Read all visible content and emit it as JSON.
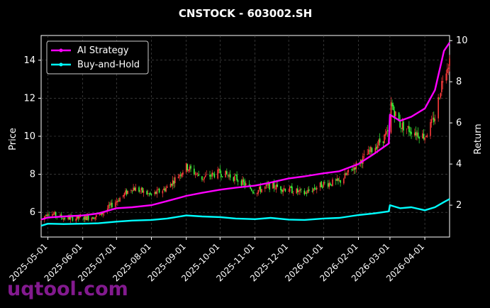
{
  "chart_data": {
    "type": "line",
    "title": "CNSTOCK - 603002.SH",
    "ylabel_left": "Price",
    "ylabel_right": "Return",
    "ylim_left": [
      4.7,
      15.3
    ],
    "ylim_right": [
      0.45,
      10.25
    ],
    "xlim": [
      "2025-04-25",
      "2026-04-23"
    ],
    "yticks_left": [
      6,
      8,
      10,
      12,
      14
    ],
    "yticks_right": [
      2,
      4,
      6,
      8,
      10
    ],
    "x_ticks": [
      "2025-05-01",
      "2025-06-01",
      "2025-07-01",
      "2025-08-01",
      "2025-09-01",
      "2025-10-01",
      "2025-11-01",
      "2025-12-01",
      "2026-01-01",
      "2026-02-01",
      "2026-03-01",
      "2026-04-01"
    ],
    "grid": true,
    "legend_position": "top-left",
    "series": [
      {
        "name": "AI Strategy",
        "color": "#ff00ff",
        "axis": "right",
        "x": [
          "2025-04-25",
          "2025-05-01",
          "2025-05-15",
          "2025-06-01",
          "2025-06-15",
          "2025-07-01",
          "2025-07-15",
          "2025-08-01",
          "2025-08-15",
          "2025-09-01",
          "2025-09-15",
          "2025-10-01",
          "2025-10-15",
          "2025-11-01",
          "2025-11-15",
          "2025-12-01",
          "2025-12-15",
          "2026-01-01",
          "2026-01-15",
          "2026-02-01",
          "2026-02-15",
          "2026-02-28",
          "2026-03-01",
          "2026-03-10",
          "2026-03-20",
          "2026-04-01",
          "2026-04-10",
          "2026-04-18",
          "2026-04-23"
        ],
        "values": [
          1.3,
          1.4,
          1.45,
          1.5,
          1.6,
          1.85,
          1.9,
          2.0,
          2.2,
          2.45,
          2.6,
          2.75,
          2.85,
          2.95,
          3.1,
          3.3,
          3.4,
          3.55,
          3.65,
          4.0,
          4.5,
          5.0,
          6.4,
          6.1,
          6.3,
          6.7,
          7.6,
          9.5,
          9.9
        ]
      },
      {
        "name": "Buy-and-Hold",
        "color": "#00ffff",
        "axis": "right",
        "x": [
          "2025-04-25",
          "2025-05-01",
          "2025-05-15",
          "2025-06-01",
          "2025-06-15",
          "2025-07-01",
          "2025-07-15",
          "2025-08-01",
          "2025-08-15",
          "2025-09-01",
          "2025-09-15",
          "2025-10-01",
          "2025-10-15",
          "2025-11-01",
          "2025-11-15",
          "2025-12-01",
          "2025-12-15",
          "2026-01-01",
          "2026-01-15",
          "2026-02-01",
          "2026-02-15",
          "2026-02-28",
          "2026-03-01",
          "2026-03-10",
          "2026-03-20",
          "2026-04-01",
          "2026-04-10",
          "2026-04-18",
          "2026-04-23"
        ],
        "values": [
          1.0,
          1.1,
          1.08,
          1.1,
          1.12,
          1.2,
          1.25,
          1.28,
          1.35,
          1.5,
          1.45,
          1.42,
          1.35,
          1.32,
          1.38,
          1.3,
          1.28,
          1.35,
          1.38,
          1.52,
          1.6,
          1.7,
          2.0,
          1.85,
          1.9,
          1.75,
          1.9,
          2.15,
          2.3
        ]
      },
      {
        "name": "Price",
        "type": "candlestick",
        "axis": "left",
        "x": [
          "2025-04-25",
          "2025-05-01",
          "2025-05-15",
          "2025-06-01",
          "2025-06-15",
          "2025-07-01",
          "2025-07-15",
          "2025-08-01",
          "2025-08-15",
          "2025-09-01",
          "2025-09-15",
          "2025-10-01",
          "2025-10-15",
          "2025-11-01",
          "2025-11-15",
          "2025-12-01",
          "2025-12-15",
          "2026-01-01",
          "2026-01-15",
          "2026-02-01",
          "2026-02-15",
          "2026-02-28",
          "2026-03-01",
          "2026-03-10",
          "2026-03-20",
          "2026-04-01",
          "2026-04-10",
          "2026-04-18",
          "2026-04-23"
        ],
        "values": [
          5.6,
          6.0,
          5.7,
          5.7,
          5.8,
          6.6,
          7.3,
          6.9,
          7.3,
          8.4,
          7.8,
          8.1,
          7.8,
          7.1,
          7.4,
          7.2,
          7.0,
          7.5,
          7.6,
          8.6,
          9.4,
          10.2,
          11.8,
          10.6,
          10.3,
          10.0,
          11.0,
          13.4,
          14.0
        ]
      }
    ]
  },
  "watermark": "uqtool.com"
}
